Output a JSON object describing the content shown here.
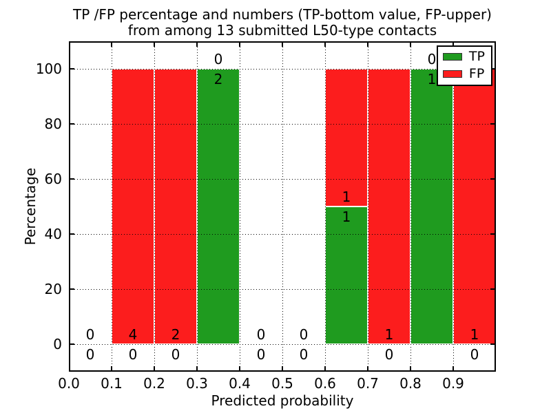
{
  "chart_data": {
    "type": "bar",
    "stacked": true,
    "title_lines": [
      "TP /FP percentage and numbers (TP-bottom value, FP-upper)",
      "from among 13 submitted L50-type contacts"
    ],
    "xlabel": "Predicted probability",
    "ylabel": "Percentage",
    "xlim": [
      0.0,
      1.0
    ],
    "ylim": [
      -10,
      110
    ],
    "xticks": [
      "0.0",
      "0.1",
      "0.2",
      "0.3",
      "0.4",
      "0.5",
      "0.6",
      "0.7",
      "0.8",
      "0.9"
    ],
    "yticks": [
      0,
      20,
      40,
      60,
      80,
      100
    ],
    "grid": "dotted",
    "legend_position": "upper right",
    "legend": [
      {
        "label": "TP",
        "color": "#1f9b1f"
      },
      {
        "label": "FP",
        "color": "#fc1d1d"
      }
    ],
    "colors": {
      "tp": "#1f9b1f",
      "fp": "#fc1d1d",
      "text": "#000000",
      "background": "#ffffff"
    },
    "total_contacts": 13,
    "annotation_rule": "TP count below green/red boundary, FP count above boundary",
    "bins": [
      {
        "range": [
          0.0,
          0.1
        ],
        "tp_pct": 0,
        "fp_pct": 0,
        "tp_count": 0,
        "fp_count": 0
      },
      {
        "range": [
          0.1,
          0.2
        ],
        "tp_pct": 0,
        "fp_pct": 100,
        "tp_count": 0,
        "fp_count": 4
      },
      {
        "range": [
          0.2,
          0.3
        ],
        "tp_pct": 0,
        "fp_pct": 100,
        "tp_count": 0,
        "fp_count": 2
      },
      {
        "range": [
          0.3,
          0.4
        ],
        "tp_pct": 100,
        "fp_pct": 0,
        "tp_count": 2,
        "fp_count": 0
      },
      {
        "range": [
          0.4,
          0.5
        ],
        "tp_pct": 0,
        "fp_pct": 0,
        "tp_count": 0,
        "fp_count": 0
      },
      {
        "range": [
          0.5,
          0.6
        ],
        "tp_pct": 0,
        "fp_pct": 0,
        "tp_count": 0,
        "fp_count": 0
      },
      {
        "range": [
          0.6,
          0.7
        ],
        "tp_pct": 50,
        "fp_pct": 50,
        "tp_count": 1,
        "fp_count": 1
      },
      {
        "range": [
          0.7,
          0.8
        ],
        "tp_pct": 0,
        "fp_pct": 100,
        "tp_count": 0,
        "fp_count": 1
      },
      {
        "range": [
          0.8,
          0.9
        ],
        "tp_pct": 100,
        "fp_pct": 0,
        "tp_count": 1,
        "fp_count": 0
      },
      {
        "range": [
          0.9,
          1.0
        ],
        "tp_pct": 0,
        "fp_pct": 100,
        "tp_count": 0,
        "fp_count": 1
      }
    ]
  }
}
